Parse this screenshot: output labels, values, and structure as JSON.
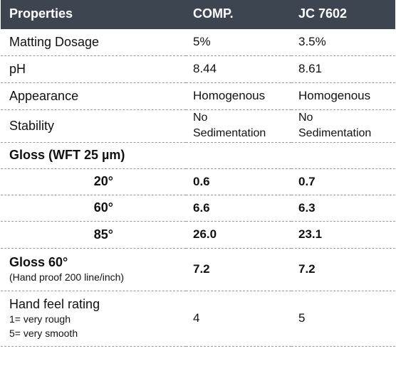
{
  "header": {
    "properties": "Properties",
    "comp": "COMP.",
    "jc": "JC 7602"
  },
  "rows": {
    "matting": {
      "label": "Matting Dosage",
      "comp": "5%",
      "jc": "3.5%"
    },
    "ph": {
      "label": "pH",
      "comp": "8.44",
      "jc": "8.61"
    },
    "appearance": {
      "label": "Appearance",
      "comp": "Homogenous",
      "jc": "Homogenous"
    },
    "stability": {
      "label": "Stability",
      "comp_line1": "No",
      "comp_line2": "Sedimentation",
      "jc_line1": "No",
      "jc_line2": "Sedimentation"
    },
    "gloss_wft": {
      "label": "Gloss (WFT 25 µm)"
    },
    "g20": {
      "label": "20°",
      "comp": "0.6",
      "jc": "0.7"
    },
    "g60": {
      "label": "60°",
      "comp": "6.6",
      "jc": "6.3"
    },
    "g85": {
      "label": "85°",
      "comp": "26.0",
      "jc": "23.1"
    },
    "gloss60": {
      "label": "Gloss 60°",
      "note": "(Hand proof 200 line/inch)",
      "comp": "7.2",
      "jc": "7.2"
    },
    "handfeel": {
      "label": "Hand feel rating",
      "note1": "1= very rough",
      "note2": "5= very smooth",
      "comp": "4",
      "jc": "5"
    }
  }
}
